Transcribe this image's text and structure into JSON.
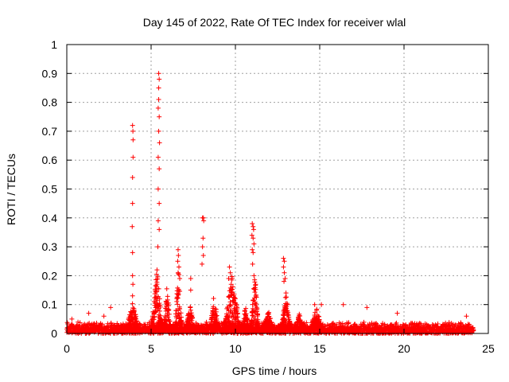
{
  "chart_data": {
    "type": "scatter",
    "title": "Day 145 of 2022, Rate Of TEC Index for receiver wlal",
    "xlabel": "GPS time / hours",
    "ylabel": "ROTI / TECUs",
    "xlim": [
      0,
      25
    ],
    "ylim": [
      0,
      1
    ],
    "xticks": [
      "0",
      "5",
      "10",
      "15",
      "20",
      "25"
    ],
    "yticks": [
      "0",
      "0.1",
      "0.2",
      "0.3",
      "0.4",
      "0.5",
      "0.6",
      "0.7",
      "0.8",
      "0.9",
      "1"
    ],
    "grid": true,
    "marker": "+",
    "series_color": "#ff0000",
    "points": [
      [
        3.9,
        0.72
      ],
      [
        3.92,
        0.7
      ],
      [
        3.93,
        0.67
      ],
      [
        3.93,
        0.61
      ],
      [
        3.9,
        0.54
      ],
      [
        3.9,
        0.45
      ],
      [
        3.88,
        0.37
      ],
      [
        3.9,
        0.28
      ],
      [
        3.9,
        0.2
      ],
      [
        3.92,
        0.17
      ],
      [
        3.9,
        0.13
      ],
      [
        5.45,
        0.9
      ],
      [
        5.48,
        0.88
      ],
      [
        5.45,
        0.85
      ],
      [
        5.45,
        0.81
      ],
      [
        5.42,
        0.78
      ],
      [
        5.48,
        0.75
      ],
      [
        5.45,
        0.7
      ],
      [
        5.5,
        0.66
      ],
      [
        5.42,
        0.61
      ],
      [
        5.48,
        0.57
      ],
      [
        5.42,
        0.5
      ],
      [
        5.48,
        0.45
      ],
      [
        5.42,
        0.39
      ],
      [
        5.48,
        0.36
      ],
      [
        5.4,
        0.3
      ],
      [
        5.35,
        0.22
      ],
      [
        6.6,
        0.29
      ],
      [
        6.62,
        0.27
      ],
      [
        6.58,
        0.25
      ],
      [
        6.65,
        0.23
      ],
      [
        6.6,
        0.21
      ],
      [
        6.7,
        0.19
      ],
      [
        8.05,
        0.4
      ],
      [
        8.1,
        0.4
      ],
      [
        8.12,
        0.39
      ],
      [
        8.08,
        0.33
      ],
      [
        8.05,
        0.3
      ],
      [
        8.1,
        0.27
      ],
      [
        8.02,
        0.24
      ],
      [
        7.35,
        0.19
      ],
      [
        7.35,
        0.15
      ],
      [
        9.65,
        0.23
      ],
      [
        9.7,
        0.21
      ],
      [
        9.6,
        0.19
      ],
      [
        9.75,
        0.17
      ],
      [
        11.0,
        0.38
      ],
      [
        11.05,
        0.37
      ],
      [
        11.08,
        0.36
      ],
      [
        10.98,
        0.34
      ],
      [
        11.05,
        0.33
      ],
      [
        11.1,
        0.31
      ],
      [
        11.0,
        0.29
      ],
      [
        11.05,
        0.28
      ],
      [
        11.02,
        0.24
      ],
      [
        11.1,
        0.2
      ],
      [
        11.2,
        0.17
      ],
      [
        12.85,
        0.26
      ],
      [
        12.9,
        0.25
      ],
      [
        12.85,
        0.23
      ],
      [
        12.9,
        0.21
      ],
      [
        12.95,
        0.19
      ],
      [
        12.88,
        0.18
      ],
      [
        13.0,
        0.14
      ],
      [
        14.7,
        0.1
      ],
      [
        15.1,
        0.1
      ],
      [
        16.4,
        0.1
      ],
      [
        17.8,
        0.09
      ],
      [
        19.6,
        0.07
      ],
      [
        23.7,
        0.06
      ],
      [
        2.6,
        0.09
      ],
      [
        2.2,
        0.06
      ],
      [
        0.3,
        0.05
      ],
      [
        1.3,
        0.07
      ]
    ],
    "clusters": [
      {
        "start": 3.5,
        "end": 4.3,
        "peak": 0.1
      },
      {
        "start": 5.0,
        "end": 5.7,
        "peak": 0.22
      },
      {
        "start": 5.75,
        "end": 6.15,
        "peak": 0.17
      },
      {
        "start": 6.4,
        "end": 6.85,
        "peak": 0.22
      },
      {
        "start": 7.0,
        "end": 7.6,
        "peak": 0.09
      },
      {
        "start": 8.5,
        "end": 9.0,
        "peak": 0.14
      },
      {
        "start": 9.3,
        "end": 10.3,
        "peak": 0.2
      },
      {
        "start": 10.4,
        "end": 10.8,
        "peak": 0.09
      },
      {
        "start": 10.9,
        "end": 11.4,
        "peak": 0.19
      },
      {
        "start": 11.6,
        "end": 12.3,
        "peak": 0.07
      },
      {
        "start": 12.7,
        "end": 13.3,
        "peak": 0.13
      },
      {
        "start": 13.5,
        "end": 14.1,
        "peak": 0.06
      },
      {
        "start": 14.4,
        "end": 15.2,
        "peak": 0.08
      }
    ],
    "baseline": {
      "start": 0,
      "end": 24.1,
      "low": 0.0,
      "high": 0.04
    }
  }
}
